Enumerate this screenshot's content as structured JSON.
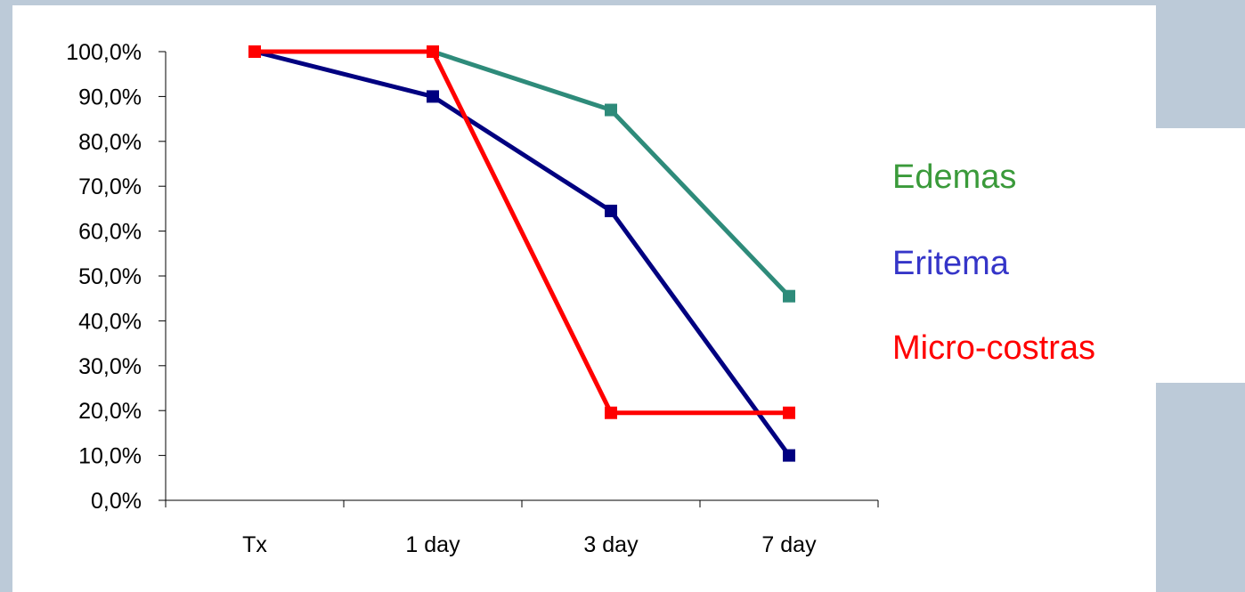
{
  "chart_data": {
    "type": "line",
    "categories": [
      "Tx",
      "1 day",
      "3 day",
      "7 day"
    ],
    "ylim": [
      0,
      1
    ],
    "y_ticks": [
      0,
      0.1,
      0.2,
      0.3,
      0.4,
      0.5,
      0.6,
      0.7,
      0.8,
      0.9,
      1.0
    ],
    "y_tick_labels": [
      "0,0%",
      "10,0%",
      "20,0%",
      "30,0%",
      "40,0%",
      "50,0%",
      "60,0%",
      "70,0%",
      "80,0%",
      "90,0%",
      "100,0%"
    ],
    "grid": false,
    "legend_position": "right",
    "series": [
      {
        "name": "Edemas",
        "values": [
          1.0,
          1.0,
          0.87,
          0.455
        ],
        "color": "#2e8b7a",
        "label_color": "#3a9a3a"
      },
      {
        "name": "Eritema",
        "values": [
          1.0,
          0.9,
          0.645,
          0.1
        ],
        "color": "#000080",
        "label_color": "#3535c8"
      },
      {
        "name": "Micro-costras",
        "values": [
          1.0,
          1.0,
          0.195,
          0.195
        ],
        "color": "#ff0000",
        "label_color": "#ff0000"
      }
    ]
  }
}
